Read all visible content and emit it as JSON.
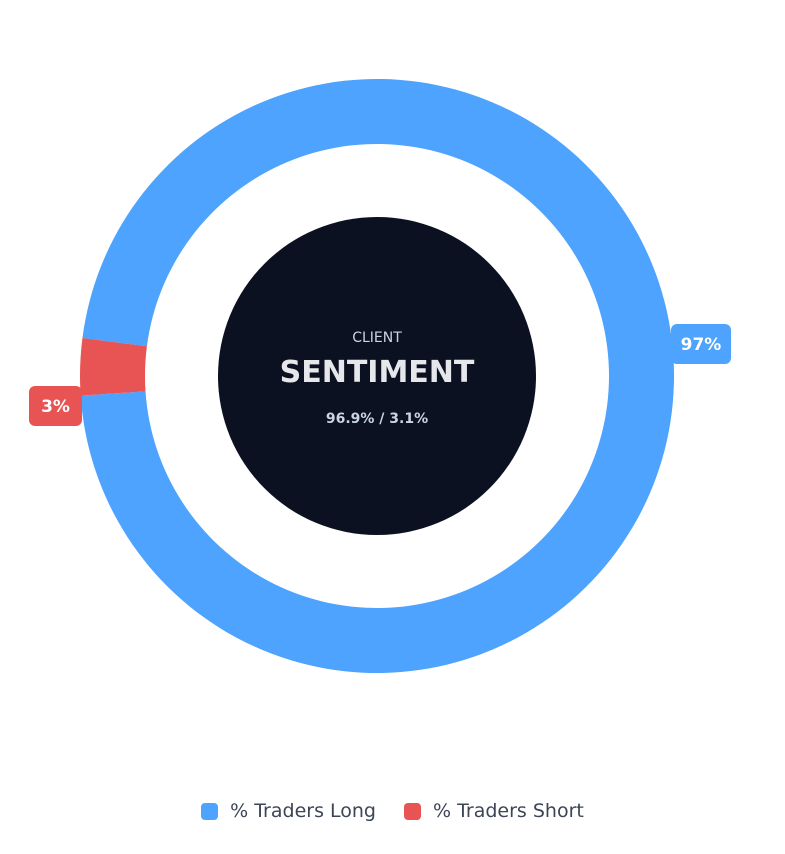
{
  "chart_data": {
    "type": "pie",
    "subtype": "donut",
    "center": {
      "kicker": "CLIENT",
      "title": "SENTIMENT",
      "ratio": "96.9% / 3.1%"
    },
    "series": [
      {
        "name": "% Traders Long",
        "value": 96.9,
        "data_label": "97%",
        "color": "#4da3fd"
      },
      {
        "name": "% Traders Short",
        "value": 3.1,
        "data_label": "3%",
        "color": "#e85453"
      }
    ],
    "legend_position": "bottom-center",
    "center_background": "#0b1120",
    "center_text_color": "#e5e7eb"
  }
}
